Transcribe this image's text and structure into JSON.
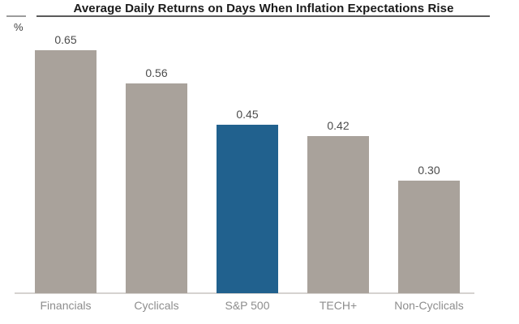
{
  "chart": {
    "title": "Average Daily Returns on Days When Inflation Expectations Rise",
    "unit_label": "%"
  },
  "chart_data": {
    "type": "bar",
    "title": "Average Daily Returns on Days When Inflation Expectations Rise",
    "xlabel": "",
    "ylabel": "%",
    "categories": [
      "Financials",
      "Cyclicals",
      "S&P 500",
      "TECH+",
      "Non-Cyclicals"
    ],
    "values": [
      0.65,
      0.56,
      0.45,
      0.42,
      0.3
    ],
    "value_labels": [
      "0.65",
      "0.56",
      "0.45",
      "0.42",
      "0.30"
    ],
    "ylim": [
      0,
      0.74
    ],
    "grid": false,
    "legend": false,
    "highlight_index": 2,
    "bar_color": "#a9a29b",
    "highlight_color": "#21618e",
    "axis_color": "#d6d3d0",
    "value_label_color": "#4c4c4c",
    "category_label_color": "#8d8d8d"
  }
}
